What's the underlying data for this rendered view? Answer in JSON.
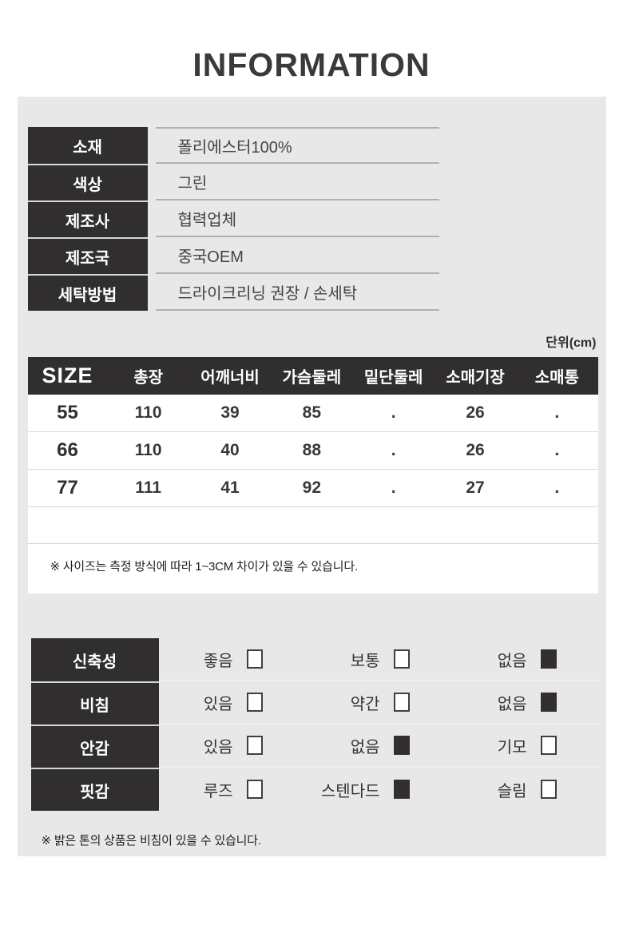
{
  "title": "INFORMATION",
  "unit_label": "단위(cm)",
  "info_table": {
    "rows": [
      {
        "label": "소재",
        "value": "폴리에스터100%"
      },
      {
        "label": "색상",
        "value": "그린"
      },
      {
        "label": "제조사",
        "value": "협력업체"
      },
      {
        "label": "제조국",
        "value": "중국OEM"
      },
      {
        "label": "세탁방법",
        "value": "드라이크리닝 권장 / 손세탁"
      }
    ]
  },
  "size_table": {
    "header": [
      "SIZE",
      "총장",
      "어깨너비",
      "가슴둘레",
      "밑단둘레",
      "소매기장",
      "소매통"
    ],
    "rows": [
      [
        "55",
        "110",
        "39",
        "85",
        ".",
        "26",
        "."
      ],
      [
        "66",
        "110",
        "40",
        "88",
        ".",
        "26",
        "."
      ],
      [
        "77",
        "111",
        "41",
        "92",
        ".",
        "27",
        "."
      ]
    ],
    "note": "※ 사이즈는 측정 방식에 따라 1~3CM 차이가 있을 수 있습니다."
  },
  "feature_table": {
    "rows": [
      {
        "label": "신축성",
        "options": [
          {
            "text": "좋음",
            "checked": false
          },
          {
            "text": "보통",
            "checked": false
          },
          {
            "text": "없음",
            "checked": true
          }
        ]
      },
      {
        "label": "비침",
        "options": [
          {
            "text": "있음",
            "checked": false
          },
          {
            "text": "약간",
            "checked": false
          },
          {
            "text": "없음",
            "checked": true
          }
        ]
      },
      {
        "label": "안감",
        "options": [
          {
            "text": "있음",
            "checked": false
          },
          {
            "text": "없음",
            "checked": true
          },
          {
            "text": "기모",
            "checked": false
          }
        ]
      },
      {
        "label": "핏감",
        "options": [
          {
            "text": "루즈",
            "checked": false
          },
          {
            "text": "스텐다드",
            "checked": true
          },
          {
            "text": "슬림",
            "checked": false
          }
        ]
      }
    ],
    "note": "※ 밝은 톤의 상품은 비침이 있을 수 있습니다."
  },
  "colors": {
    "dark_cell": "#312e2f",
    "panel_bg": "#e9e8e8",
    "info_line": "#b2b0b0",
    "size_line": "#d8d8d8",
    "text": "#3c393a",
    "white": "#ffffff"
  }
}
